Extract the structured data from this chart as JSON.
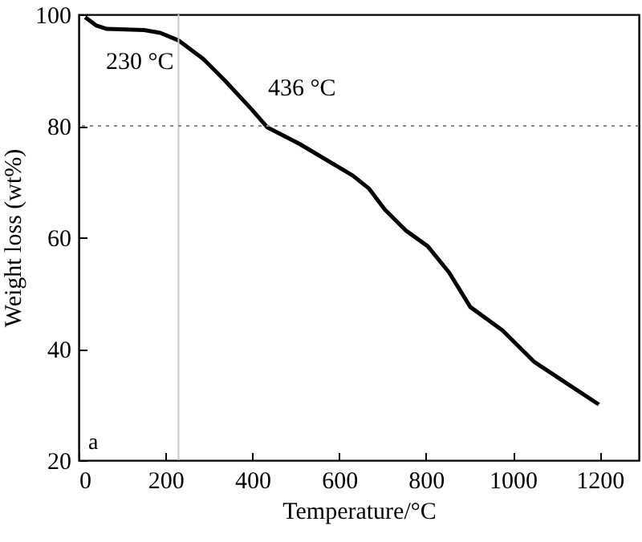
{
  "chart_data": {
    "type": "line",
    "xlabel": "Temperature/°C",
    "ylabel": "Weight loss (wt%)",
    "x": [
      15,
      41,
      65,
      151,
      188,
      231,
      287,
      336,
      398,
      435,
      508,
      631,
      668,
      705,
      754,
      804,
      853,
      902,
      976,
      1050,
      1124,
      1198
    ],
    "series": [
      {
        "color": "#000000",
        "values": [
          99.5,
          98,
          97.4,
          97.2,
          96.7,
          95.3,
          92,
          88.2,
          83,
          79.7,
          76.8,
          71.1,
          68.8,
          65,
          61.2,
          58.4,
          53.7,
          47.5,
          43.3,
          37.6,
          33.8,
          30
        ]
      }
    ],
    "xlim": [
      0,
      1290
    ],
    "xticks": [
      0,
      200,
      400,
      600,
      800,
      1000,
      1200
    ],
    "ylim": [
      20,
      100
    ],
    "yticks": [
      20,
      40,
      60,
      80,
      100
    ],
    "ref_lines": [
      {
        "axis": "x",
        "value": 230,
        "label": "230 °C",
        "color": "#c8c8c8",
        "line_style": "solid"
      },
      {
        "axis": "y",
        "value": 80,
        "color": "#888888",
        "line_style": "dotted"
      }
    ],
    "annotations": [
      {
        "text": "436 °C",
        "x": 436,
        "y": 80
      },
      "a"
    ],
    "grid": false,
    "marker": "none",
    "line_style": "solid"
  }
}
